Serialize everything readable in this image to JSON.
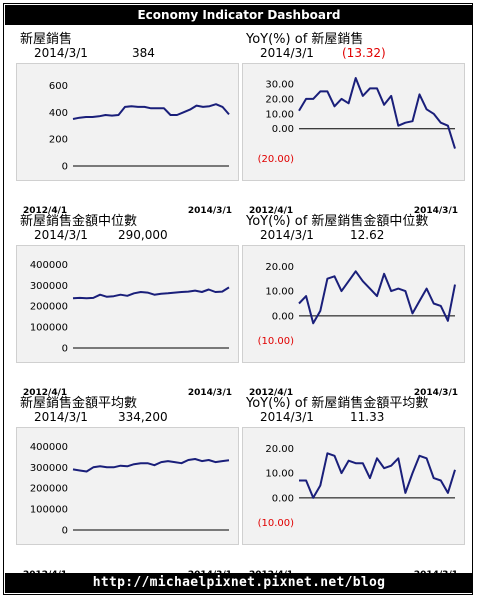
{
  "header": {
    "title": "Economy Indicator Dashboard"
  },
  "footer": {
    "url": "http://michaelpixnet.pixnet.net/blog"
  },
  "colors": {
    "line": "#1a1f7a",
    "negative": "#e00000",
    "plot_bg": "#f2f2f2"
  },
  "chart_data": [
    {
      "type": "line",
      "title": "新屋銷售",
      "latest_date": "2014/3/1",
      "latest_value": "384",
      "x_start": "2012/4/1",
      "x_end": "2014/3/1",
      "ylim": [
        0,
        700
      ],
      "yticks": [
        0,
        200,
        400,
        600
      ],
      "ytick_labels": [
        "0",
        "200",
        "400",
        "600"
      ],
      "values": [
        350,
        360,
        365,
        365,
        370,
        380,
        375,
        380,
        440,
        445,
        440,
        440,
        430,
        430,
        430,
        380,
        380,
        400,
        420,
        450,
        440,
        445,
        460,
        440,
        384
      ]
    },
    {
      "type": "line",
      "title": "YoY(%) of 新屋銷售",
      "latest_date": "2014/3/1",
      "latest_value": "(13.32)",
      "x_start": "2012/4/1",
      "x_end": "2014/3/1",
      "ylim": [
        -25,
        38
      ],
      "yticks": [
        -20,
        0,
        10,
        20,
        30
      ],
      "ytick_labels": [
        "(20.00)",
        "0.00",
        "10.00",
        "20.00",
        "30.00"
      ],
      "values": [
        12,
        20,
        20,
        25,
        25,
        15,
        20,
        17,
        34,
        22,
        27,
        27,
        16,
        22,
        2,
        4,
        5,
        23,
        13,
        10,
        4,
        2,
        -13.32
      ]
    },
    {
      "type": "line",
      "title": "新屋銷售金額中位數",
      "latest_date": "2014/3/1",
      "latest_value": "290,000",
      "x_start": "2012/4/1",
      "x_end": "2014/3/1",
      "ylim": [
        0,
        450000
      ],
      "yticks": [
        0,
        100000,
        200000,
        300000,
        400000
      ],
      "ytick_labels": [
        "0",
        "100000",
        "200000",
        "300000",
        "400000"
      ],
      "values": [
        238000,
        240000,
        238000,
        240000,
        255000,
        245000,
        248000,
        255000,
        250000,
        262000,
        268000,
        265000,
        255000,
        260000,
        262000,
        265000,
        268000,
        270000,
        275000,
        268000,
        280000,
        268000,
        270000,
        290000
      ]
    },
    {
      "type": "line",
      "title": "YoY(%) of 新屋銷售金額中位數",
      "latest_date": "2014/3/1",
      "latest_value": "12.62",
      "x_start": "2012/4/1",
      "x_end": "2014/3/1",
      "ylim": [
        -13,
        25
      ],
      "yticks": [
        -10,
        0,
        10,
        20
      ],
      "ytick_labels": [
        "(10.00)",
        "0.00",
        "10.00",
        "20.00"
      ],
      "values": [
        5,
        8,
        -3,
        2,
        15,
        16,
        10,
        14,
        18,
        14,
        11,
        8,
        17,
        10,
        11,
        10,
        1,
        6,
        11,
        5,
        4,
        -2,
        12.62
      ]
    },
    {
      "type": "line",
      "title": "新屋銷售金額平均數",
      "latest_date": "2014/3/1",
      "latest_value": "334,200",
      "x_start": "2012/4/1",
      "x_end": "2014/3/1",
      "ylim": [
        0,
        450000
      ],
      "yticks": [
        0,
        100000,
        200000,
        300000,
        400000
      ],
      "ytick_labels": [
        "0",
        "100000",
        "200000",
        "300000",
        "400000"
      ],
      "values": [
        290000,
        285000,
        280000,
        300000,
        305000,
        300000,
        300000,
        308000,
        305000,
        315000,
        320000,
        320000,
        310000,
        325000,
        330000,
        325000,
        320000,
        335000,
        340000,
        330000,
        335000,
        325000,
        330000,
        334200
      ]
    },
    {
      "type": "line",
      "title": "YoY(%) of 新屋銷售金額平均數",
      "latest_date": "2014/3/1",
      "latest_value": "11.33",
      "x_start": "2012/4/1",
      "x_end": "2014/3/1",
      "ylim": [
        -13,
        25
      ],
      "yticks": [
        -10,
        0,
        10,
        20
      ],
      "ytick_labels": [
        "(10.00)",
        "0.00",
        "10.00",
        "20.00"
      ],
      "values": [
        7,
        7,
        0,
        5,
        18,
        17,
        10,
        15,
        14,
        14,
        8,
        16,
        12,
        13,
        16,
        2,
        10,
        17,
        16,
        8,
        7,
        2,
        11.33
      ]
    }
  ]
}
